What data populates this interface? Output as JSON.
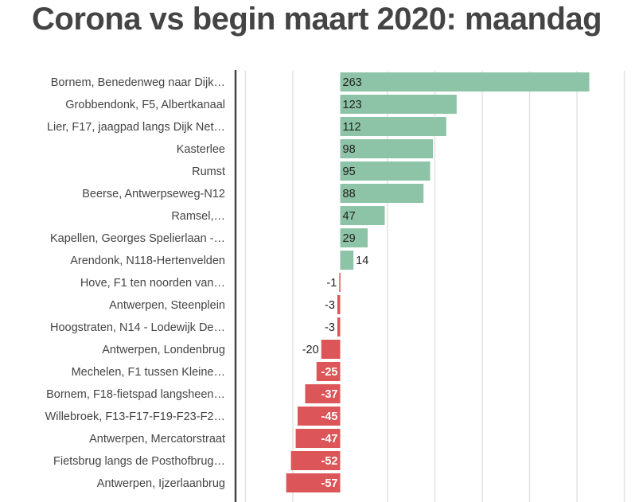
{
  "chart_data": {
    "type": "bar",
    "orientation": "horizontal",
    "title": "Corona vs begin maart 2020: maandag",
    "categories": [
      "Bornem, Benedenweg naar Dijk…",
      "Grobbendonk, F5, Albertkanaal",
      "Lier, F17, jaagpad langs Dijk Net…",
      "Kasterlee",
      "Rumst",
      "Beerse, Antwerpseweg-N12",
      "Ramsel,…",
      "Kapellen, Georges Spelierlaan -…",
      "Arendonk, N118-Hertenvelden",
      "Hove, F1 ten noorden van…",
      "Antwerpen, Steenplein",
      "Hoogstraten, N14 - Lodewijk De…",
      "Antwerpen, Londenbrug",
      "Mechelen, F1 tussen Kleine…",
      "Bornem, F18-fietspad langsheen…",
      "Willebroek, F13-F17-F19-F23-F2…",
      "Antwerpen, Mercatorstraat",
      "Fietsbrug langs de Posthofbrug…",
      "Antwerpen, Ijzerlaanbrug"
    ],
    "values": [
      263,
      123,
      112,
      98,
      95,
      88,
      47,
      29,
      14,
      -1,
      -3,
      -3,
      -20,
      -25,
      -37,
      -45,
      -47,
      -52,
      -57
    ],
    "xlim": [
      -100,
      300
    ],
    "grid_step": 50,
    "grid": true,
    "colors": {
      "positive": "#8dc3a7",
      "negative": "#dc5558"
    }
  }
}
